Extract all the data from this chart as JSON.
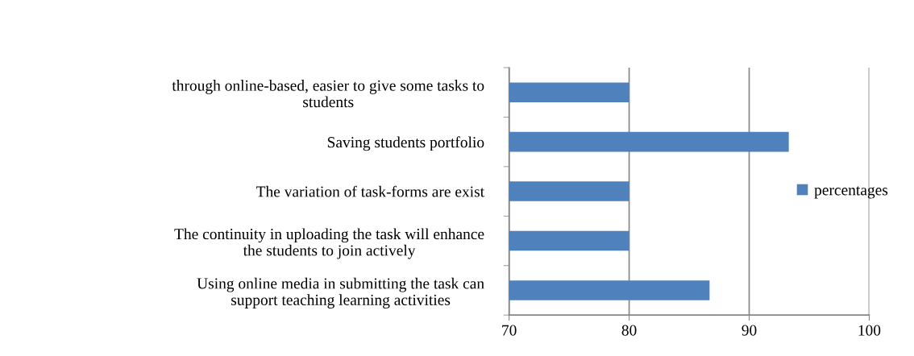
{
  "chart_data": {
    "type": "bar",
    "orientation": "horizontal",
    "categories": [
      "through online-based, easier to give some tasks to\nstudents",
      "Saving students portfolio",
      "The variation of task-forms are exist",
      "The continuity in uploading the task will enhance\nthe students to join actively",
      "Using online media in submitting the task can\nsupport teaching learning activities"
    ],
    "series": [
      {
        "name": "percentages",
        "color": "#4f81bd",
        "values": [
          80,
          93.3,
          80,
          80,
          86.7
        ]
      }
    ],
    "xlim": [
      70,
      100
    ],
    "xticks": [
      70,
      80,
      90,
      100
    ],
    "grid": "x",
    "legend": "right"
  }
}
